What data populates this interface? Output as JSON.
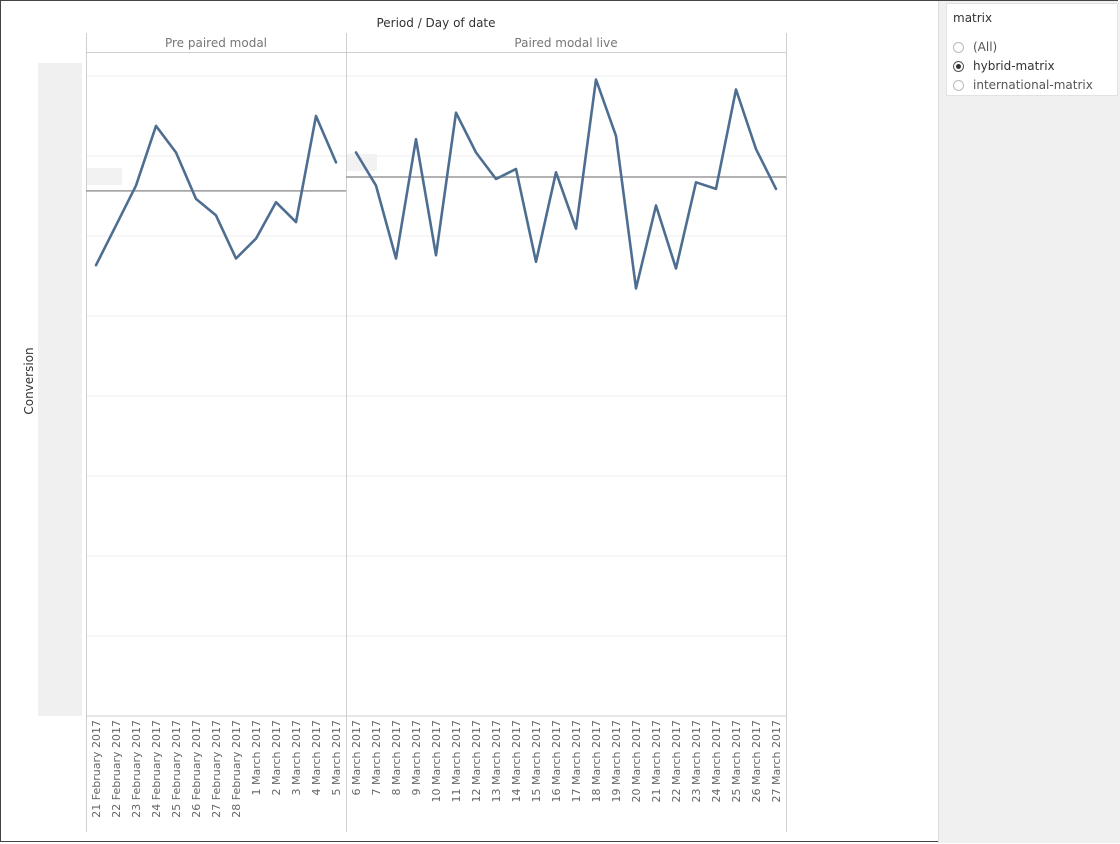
{
  "header": {
    "title": "Period  /  Day of date"
  },
  "y_axis": {
    "label": "Conversion"
  },
  "legend": {
    "title": "matrix",
    "items": [
      {
        "label": "(All)",
        "selected": false
      },
      {
        "label": "hybrid-matrix",
        "selected": true
      },
      {
        "label": "international-matrix",
        "selected": false
      }
    ]
  },
  "colors": {
    "line": "#4e6e91",
    "reference_line": "#999999",
    "grid": "#eeeeee",
    "axis_band": "#f0f0f0"
  },
  "chart_data": {
    "type": "line",
    "title": "Period  /  Day of date",
    "ylabel": "Conversion",
    "ylim": [
      0,
      100
    ],
    "grid": true,
    "legend_placement": "top-right",
    "panels": [
      {
        "name": "Pre paired modal",
        "categories": [
          "21 February 2017",
          "22 February 2017",
          "23 February 2017",
          "24 February 2017",
          "25 February 2017",
          "26 February 2017",
          "27 February 2017",
          "28 February 2017",
          "1 March 2017",
          "2 March 2017",
          "3 March 2017",
          "4 March 2017",
          "5 March 2017"
        ],
        "values": [
          68,
          74,
          80,
          89,
          85,
          78,
          75.5,
          69,
          72,
          77.5,
          74.5,
          90.5,
          83.5
        ],
        "reference_value": 79.2
      },
      {
        "name": "Paired modal live",
        "categories": [
          "6 March 2017",
          "7 March 2017",
          "8 March 2017",
          "9 March 2017",
          "10 March 2017",
          "11 March 2017",
          "12 March 2017",
          "13 March 2017",
          "14 March 2017",
          "15 March 2017",
          "16 March 2017",
          "17 March 2017",
          "18 March 2017",
          "19 March 2017",
          "20 March 2017",
          "21 March 2017",
          "22 March 2017",
          "23 March 2017",
          "24 March 2017",
          "25 March 2017",
          "26 March 2017",
          "27 March 2017"
        ],
        "values": [
          85,
          80,
          69,
          87,
          69.5,
          91,
          85,
          81,
          82.5,
          68.5,
          82,
          73.5,
          96,
          87.5,
          64.5,
          77,
          67.5,
          80.5,
          79.5,
          94.5,
          85.5,
          79.5
        ],
        "reference_value": 81.3
      }
    ]
  }
}
